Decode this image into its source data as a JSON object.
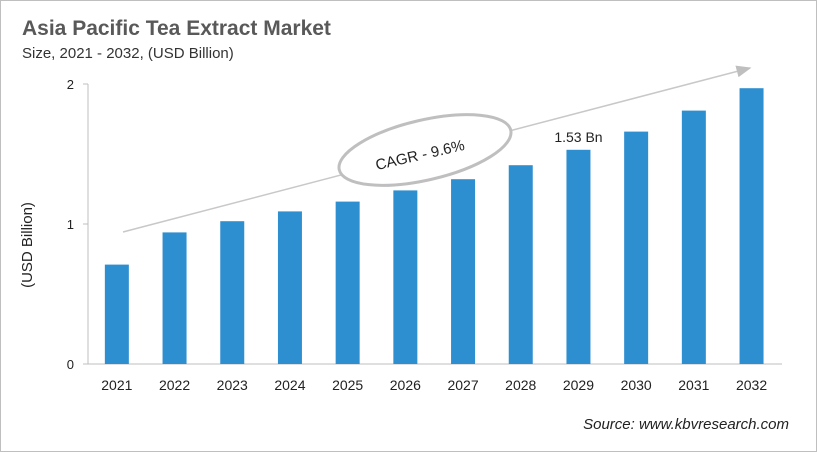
{
  "chart_data": {
    "type": "bar",
    "title": "Asia Pacific Tea Extract Market",
    "subtitle": "Size, 2021 - 2032, (USD Billion)",
    "ylabel": "(USD Billion)",
    "xlabel": "",
    "ylim": [
      0,
      2
    ],
    "yticks": [
      "0",
      "1",
      "2"
    ],
    "grid": false,
    "categories": [
      "2021",
      "2022",
      "2023",
      "2024",
      "2025",
      "2026",
      "2027",
      "2028",
      "2029",
      "2030",
      "2031",
      "2032"
    ],
    "values": [
      0.71,
      0.94,
      1.02,
      1.09,
      1.16,
      1.24,
      1.32,
      1.42,
      1.53,
      1.66,
      1.81,
      1.97
    ],
    "bar_color": "#2e8fd0",
    "data_labels": [
      {
        "category": "2029",
        "text": "1.53 Bn"
      }
    ],
    "annotation": "CAGR - 9.6%",
    "source": "Source: www.kbvresearch.com"
  }
}
